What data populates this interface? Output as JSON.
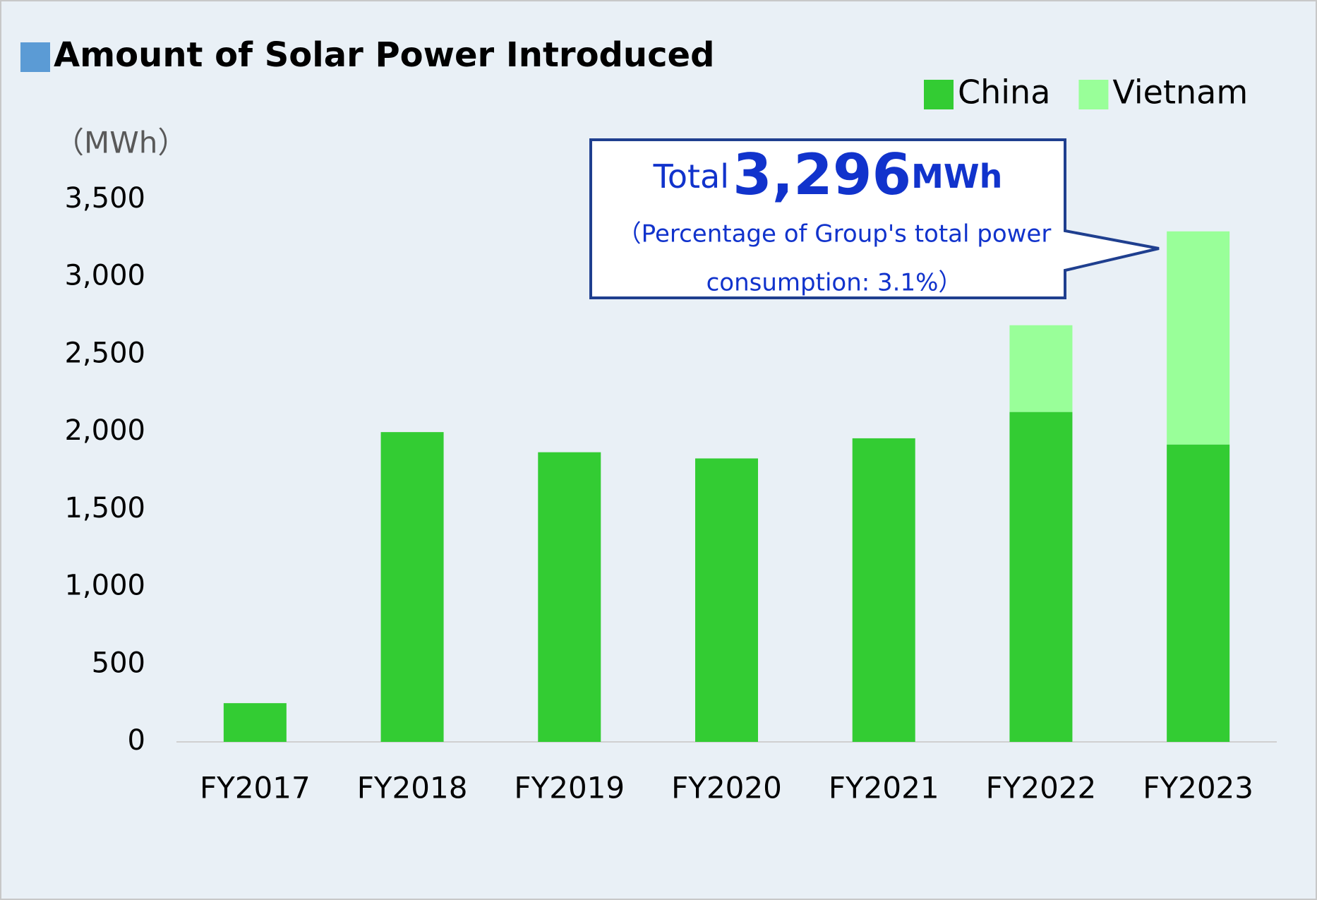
{
  "chart_data": {
    "type": "stacked_bar",
    "title": "Amount of Solar Power Introduced",
    "y_label": "（MWh）",
    "categories": [
      "FY2017",
      "FY2018",
      "FY2019",
      "FY2020",
      "FY2021",
      "FY2022",
      "FY2023"
    ],
    "series": [
      {
        "name": "China",
        "color": "#33cc33",
        "values": [
          250,
          2000,
          1870,
          1830,
          1960,
          2130,
          1920
        ]
      },
      {
        "name": "Vietnam",
        "color": "#99ff99",
        "values": [
          null,
          null,
          null,
          null,
          null,
          560,
          1376
        ]
      }
    ],
    "ylim": [
      0,
      3500
    ],
    "yticks": [
      0,
      500,
      {
        "value": 1000,
        "label": "1,000"
      },
      {
        "value": 1500,
        "label": "1,500"
      },
      {
        "value": 2000,
        "label": "2,000"
      },
      {
        "value": 2500,
        "label": "2,500"
      },
      {
        "value": 3000,
        "label": "3,000"
      },
      {
        "value": 3500,
        "label": "3,500"
      }
    ],
    "grid": false,
    "legend": "top-right",
    "annotation": {
      "prefix": "Total",
      "value_label": "3,296",
      "unit": "MWh",
      "lines": [
        "（Percentage of Group's total power",
        "consumption: 3.1%）"
      ]
    }
  }
}
